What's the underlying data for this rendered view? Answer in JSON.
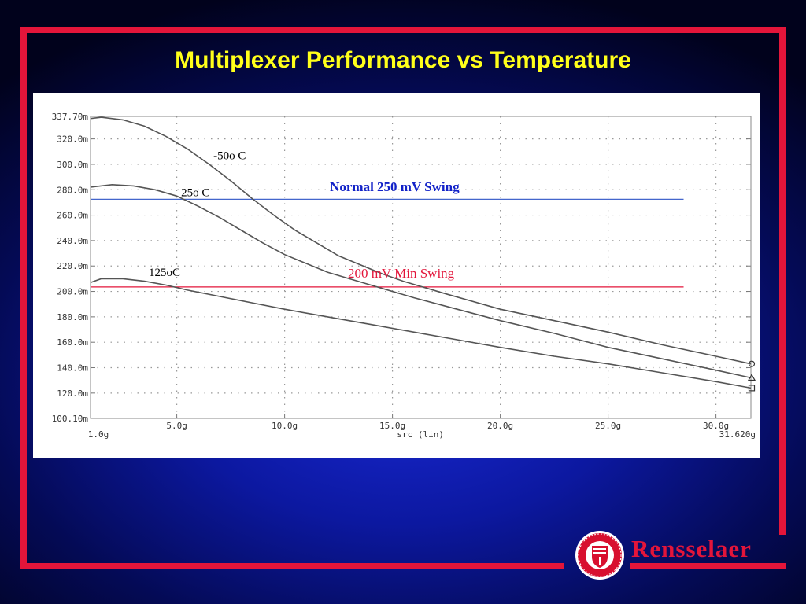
{
  "slide": {
    "title": "Multiplexer Performance vs Temperature",
    "brand": "Rensselaer",
    "frame_color": "#e3153a",
    "title_color": "#ffff1a"
  },
  "chart_data": {
    "type": "line",
    "title": "Multiplexer Performance vs Temperature",
    "xlabel": "src (lin)",
    "ylabel": "",
    "xlim": [
      1.0,
      31.62
    ],
    "ylim": [
      100.1,
      337.7
    ],
    "grid": true,
    "x_ticks": [
      {
        "value": 1.0,
        "label": "1.0g"
      },
      {
        "value": 5.0,
        "label": "5.0g"
      },
      {
        "value": 10.0,
        "label": "10.0g"
      },
      {
        "value": 15.0,
        "label": "15.0g"
      },
      {
        "value": 20.0,
        "label": "20.0g"
      },
      {
        "value": 25.0,
        "label": "25.0g"
      },
      {
        "value": 30.0,
        "label": "30.0g"
      },
      {
        "value": 31.62,
        "label": "31.620g"
      }
    ],
    "y_ticks": [
      {
        "value": 337.7,
        "label": "337.70m"
      },
      {
        "value": 320.0,
        "label": "320.0m"
      },
      {
        "value": 300.0,
        "label": "300.0m"
      },
      {
        "value": 280.0,
        "label": "280.0m"
      },
      {
        "value": 260.0,
        "label": "260.0m"
      },
      {
        "value": 240.0,
        "label": "240.0m"
      },
      {
        "value": 220.0,
        "label": "220.0m"
      },
      {
        "value": 200.0,
        "label": "200.0m"
      },
      {
        "value": 180.0,
        "label": "180.0m"
      },
      {
        "value": 160.0,
        "label": "160.0m"
      },
      {
        "value": 140.0,
        "label": "140.0m"
      },
      {
        "value": 120.0,
        "label": "120.0m"
      },
      {
        "value": 100.1,
        "label": "100.10m"
      }
    ],
    "series": [
      {
        "name": "-50o C",
        "color": "#555555",
        "marker": "circle",
        "x": [
          1.0,
          1.5,
          2.5,
          3.5,
          4.5,
          5.5,
          6.5,
          7.5,
          8.5,
          9.5,
          10.5,
          11.5,
          12.5,
          13.5,
          14.5,
          15.5,
          17.5,
          20.0,
          22.5,
          25.0,
          27.5,
          30.0,
          31.62
        ],
        "y": [
          336,
          337,
          335,
          330,
          322,
          312,
          300,
          287,
          273,
          260,
          248,
          238,
          228,
          221,
          214,
          208,
          198,
          186,
          177,
          168,
          158,
          149,
          143
        ]
      },
      {
        "name": "25o C",
        "color": "#555555",
        "marker": "triangle",
        "x": [
          1.0,
          2.0,
          3.0,
          4.0,
          5.0,
          6.0,
          7.0,
          8.0,
          9.0,
          10.0,
          11.0,
          12.0,
          14.0,
          16.0,
          18.0,
          20.0,
          22.5,
          25.0,
          27.5,
          30.0,
          31.62
        ],
        "y": [
          282,
          284,
          283,
          280,
          275,
          267,
          258,
          248,
          238,
          229,
          222,
          215,
          205,
          195,
          186,
          177,
          167,
          156,
          147,
          138,
          132
        ]
      },
      {
        "name": "125oC",
        "color": "#555555",
        "marker": "square",
        "x": [
          1.0,
          1.5,
          2.5,
          3.5,
          4.5,
          5.5,
          7.0,
          8.5,
          10.0,
          12.0,
          14.0,
          16.0,
          18.0,
          20.0,
          22.5,
          25.0,
          27.5,
          30.0,
          31.62
        ],
        "y": [
          207,
          210,
          210,
          208,
          205,
          201,
          196,
          191,
          186,
          180,
          174,
          168,
          162,
          156,
          149,
          143,
          136,
          129,
          124
        ]
      }
    ],
    "annotations": [
      {
        "text": "-50o C",
        "x": 6.7,
        "y": 304
      },
      {
        "text": "25o C",
        "x": 5.2,
        "y": 275
      },
      {
        "text": "125oC",
        "x": 3.7,
        "y": 212
      },
      {
        "text": "Normal 250 mV Swing",
        "x": 15.1,
        "y": 279,
        "color": "#1222c8"
      },
      {
        "text": "200 mV Min Swing",
        "x": 15.4,
        "y": 211,
        "color": "#e3153a"
      }
    ],
    "reference_lines": [
      {
        "label": "Normal 250 mV Swing",
        "y": 272.5,
        "x_range": [
          1.0,
          28.5
        ],
        "color": "#4466cc"
      },
      {
        "label": "200 mV Min Swing",
        "y": 203.5,
        "x_range": [
          1.0,
          28.5
        ],
        "color": "#e3153a"
      }
    ]
  }
}
